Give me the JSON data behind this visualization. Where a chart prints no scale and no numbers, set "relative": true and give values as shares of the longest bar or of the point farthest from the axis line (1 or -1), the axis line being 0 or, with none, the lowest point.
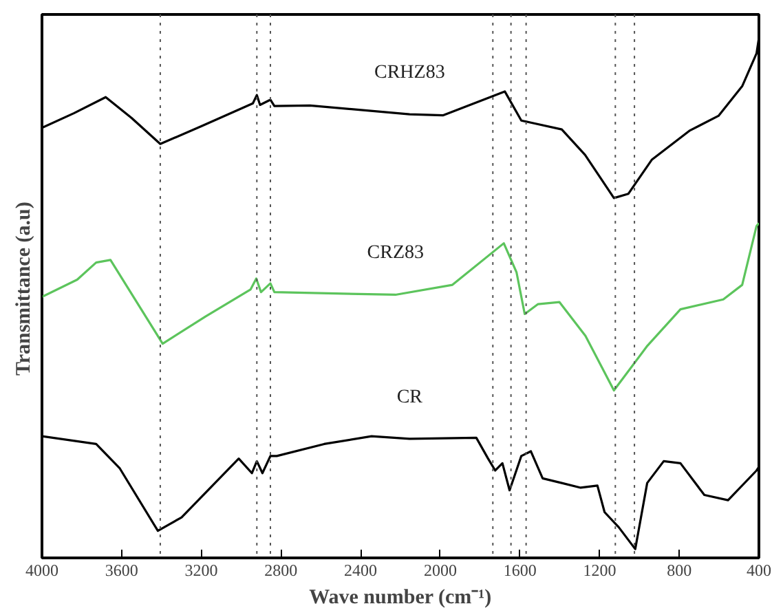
{
  "chart_data": {
    "type": "line",
    "relative": true,
    "xlabel": "Wave number (cm⁻¹)",
    "ylabel": "Transmittance  (a.u)",
    "xlim": [
      4000,
      400
    ],
    "xticks": [
      4000,
      3600,
      3200,
      2800,
      2400,
      2000,
      1600,
      1200,
      800,
      400
    ],
    "grid": false,
    "tick_labels": "x",
    "marker": "none",
    "line_style": "solid",
    "series": [
      {
        "name": "CRHZ83",
        "color": "#000000",
        "x": [
          4000,
          3840,
          3680,
          3550,
          3406,
          3200,
          2941,
          2921,
          2905,
          2853,
          2833,
          2654,
          2154,
          1987,
          1676,
          1593,
          1533,
          1390,
          1273,
          1128,
          1056,
          937,
          746,
          603,
          484,
          412,
          400
        ],
        "values": [
          0.827,
          0.855,
          0.886,
          0.846,
          0.796,
          0.83,
          0.874,
          0.89,
          0.871,
          0.881,
          0.869,
          0.87,
          0.853,
          0.851,
          0.897,
          0.841,
          0.836,
          0.824,
          0.775,
          0.692,
          0.7,
          0.766,
          0.822,
          0.85,
          0.907,
          0.97,
          1.0
        ]
      },
      {
        "name": "CRZ83",
        "color": "#5cc45c",
        "x": [
          4000,
          3823,
          3728,
          3656,
          3394,
          3179,
          2953,
          2924,
          2900,
          2853,
          2833,
          2225,
          1939,
          1681,
          1617,
          1576,
          1509,
          1402,
          1271,
          1128,
          960,
          794,
          579,
          484,
          412,
          400
        ],
        "values": [
          0.502,
          0.535,
          0.568,
          0.573,
          0.412,
          0.464,
          0.516,
          0.537,
          0.511,
          0.528,
          0.511,
          0.506,
          0.525,
          0.605,
          0.549,
          0.469,
          0.488,
          0.492,
          0.427,
          0.322,
          0.408,
          0.478,
          0.497,
          0.525,
          0.638,
          0.644
        ]
      },
      {
        "name": "CR",
        "color": "#000000",
        "x": [
          4000,
          3728,
          3609,
          3418,
          3299,
          3012,
          2946,
          2921,
          2893,
          2853,
          2821,
          2583,
          2345,
          2154,
          1819,
          1760,
          1724,
          1688,
          1652,
          1593,
          1545,
          1486,
          1390,
          1295,
          1211,
          1175,
          1104,
          1021,
          961,
          878,
          794,
          674,
          555,
          412,
          400
        ],
        "values": [
          0.234,
          0.219,
          0.172,
          0.052,
          0.078,
          0.191,
          0.163,
          0.186,
          0.163,
          0.196,
          0.196,
          0.219,
          0.234,
          0.229,
          0.231,
          0.191,
          0.168,
          0.182,
          0.13,
          0.196,
          0.205,
          0.153,
          0.144,
          0.135,
          0.139,
          0.088,
          0.059,
          0.017,
          0.144,
          0.186,
          0.182,
          0.121,
          0.111,
          0.168,
          0.175
        ]
      }
    ],
    "ref_lines": [
      {
        "axis": "x",
        "value": 3406,
        "color": "#555555",
        "line_style": "dotted"
      },
      {
        "axis": "x",
        "value": 2921,
        "color": "#555555",
        "line_style": "dotted"
      },
      {
        "axis": "x",
        "value": 2853,
        "color": "#555555",
        "line_style": "dotted"
      },
      {
        "axis": "x",
        "value": 1569,
        "color": "#555555",
        "line_style": "dotted"
      },
      {
        "axis": "x",
        "value": 1121,
        "color": "#555555",
        "line_style": "dotted"
      },
      {
        "axis": "x",
        "value": 1736,
        "color": "#555555",
        "line_style": "dotted"
      },
      {
        "axis": "x",
        "value": 1645,
        "color": "#555555",
        "line_style": "dotted"
      },
      {
        "axis": "x",
        "value": 1025,
        "color": "#555555",
        "line_style": "dotted"
      }
    ]
  }
}
